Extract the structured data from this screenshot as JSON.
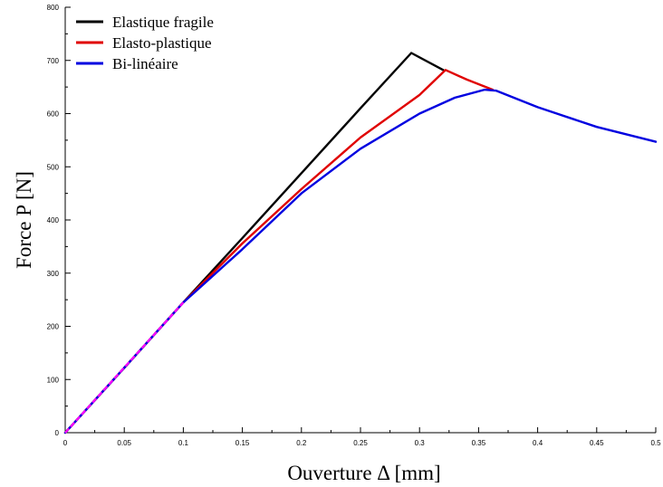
{
  "chart_data": {
    "type": "line",
    "xlabel": "Ouverture Δ [mm]",
    "ylabel": "Force P [N]",
    "xlim": [
      0,
      0.5
    ],
    "ylim": [
      0,
      800
    ],
    "x_ticks": [
      0,
      0.05,
      0.1,
      0.15,
      0.2,
      0.25,
      0.3,
      0.35,
      0.4,
      0.45,
      0.5
    ],
    "x_tick_labels": [
      "0",
      "0.05",
      "0.1",
      "0.15",
      "0.2",
      "0.25",
      "0.3",
      "0.35",
      "0.4",
      "0.45",
      "0.5"
    ],
    "y_ticks": [
      0,
      100,
      200,
      300,
      400,
      500,
      600,
      700,
      800
    ],
    "y_tick_labels": [
      "0",
      "100",
      "200",
      "300",
      "400",
      "500",
      "600",
      "700",
      "800"
    ],
    "grid": false,
    "legend_position": "top-left",
    "series": [
      {
        "name": "Elastique fragile",
        "color": "#000000",
        "x": [
          0,
          0.05,
          0.1,
          0.15,
          0.2,
          0.25,
          0.293,
          0.32
        ],
        "y": [
          0,
          122,
          245,
          366,
          488,
          610,
          714,
          682
        ]
      },
      {
        "name": "Elasto-plastique",
        "color": "#e00000",
        "x": [
          0,
          0.05,
          0.1,
          0.15,
          0.2,
          0.25,
          0.3,
          0.322,
          0.34,
          0.362
        ],
        "y": [
          0,
          122,
          245,
          356,
          458,
          555,
          635,
          682,
          664,
          645
        ]
      },
      {
        "name": "Bi-linéaire",
        "color": "#0000e0",
        "x": [
          0,
          0.05,
          0.1,
          0.12,
          0.15,
          0.2,
          0.25,
          0.3,
          0.33,
          0.355,
          0.365,
          0.4,
          0.45,
          0.5
        ],
        "y": [
          0,
          122,
          245,
          285,
          345,
          450,
          534,
          600,
          630,
          645,
          643,
          612,
          575,
          547
        ]
      },
      {
        "color": "#ff00ff",
        "dashed": true,
        "x": [
          0,
          0.1
        ],
        "y": [
          0,
          245
        ]
      }
    ]
  }
}
